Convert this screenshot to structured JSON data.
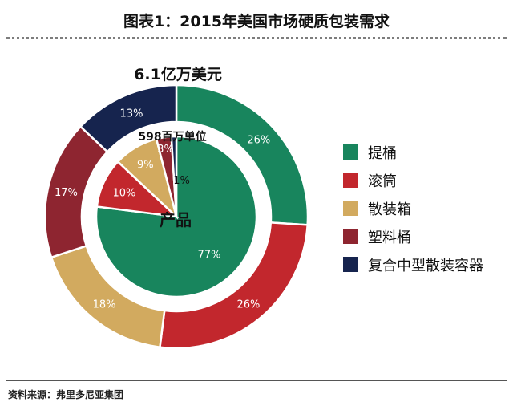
{
  "title": "图表1：2015年美国市场硬质包装需求",
  "source": "资料来源：弗里多尼亚集团",
  "legend": [
    {
      "label": "提桶",
      "color": "#18855d"
    },
    {
      "label": "滚筒",
      "color": "#c2272d"
    },
    {
      "label": "散装箱",
      "color": "#d2aa5f"
    },
    {
      "label": "塑料桶",
      "color": "#8e2530"
    },
    {
      "label": "复合中型散装容器",
      "color": "#16244e"
    }
  ],
  "chart_data": {
    "type": "pie",
    "rings": [
      {
        "title": "6.1亿万美元",
        "categories": [
          "提桶",
          "滚筒",
          "散装箱",
          "塑料桶",
          "复合中型散装容器"
        ],
        "values": [
          26,
          26,
          18,
          17,
          13
        ],
        "labels": [
          "26%",
          "26%",
          "18%",
          "17%",
          "13%"
        ]
      },
      {
        "title": "598百万单位",
        "center_label": "产品",
        "categories": [
          "提桶",
          "滚筒",
          "散装箱",
          "塑料桶",
          "复合中型散装容器"
        ],
        "values": [
          77,
          10,
          9,
          3,
          1
        ],
        "labels": [
          "77%",
          "10%",
          "9%",
          "3%",
          "1%"
        ]
      }
    ]
  }
}
